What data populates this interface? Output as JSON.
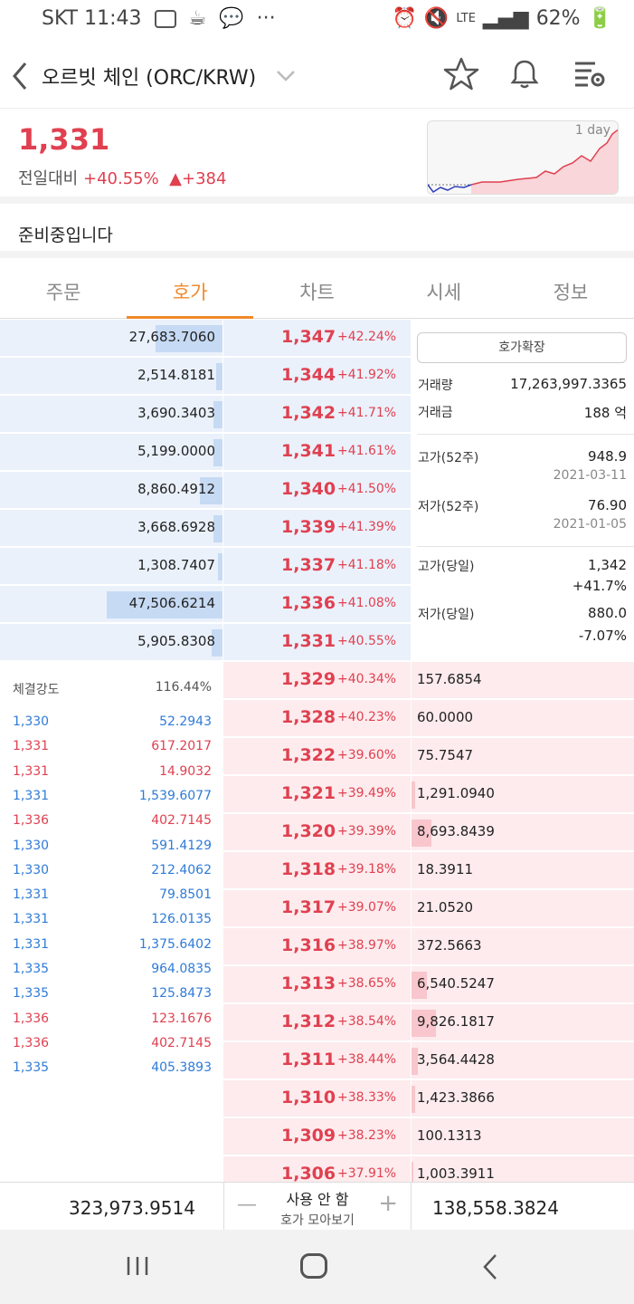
{
  "status_bar": {
    "carrier_time": "SKT 11:43",
    "dots": "···",
    "network": "LTE",
    "battery": "62%"
  },
  "header": {
    "title": "오르빗 체인 (ORC/KRW)"
  },
  "price": {
    "current": "1,331",
    "label": "전일대비",
    "percent": "+40.55%",
    "arrow": "▲",
    "diff": "+384",
    "chart_label": "1 day"
  },
  "notice": "준비중입니다",
  "tabs": [
    "주문",
    "호가",
    "차트",
    "시세",
    "정보"
  ],
  "asks": [
    {
      "qty": "27,683.7060",
      "price": "1,347",
      "pct": "+42.24%",
      "fill": 0.3
    },
    {
      "qty": "2,514.8181",
      "price": "1,344",
      "pct": "+41.92%",
      "fill": 0.03
    },
    {
      "qty": "3,690.3403",
      "price": "1,342",
      "pct": "+41.71%",
      "fill": 0.04
    },
    {
      "qty": "5,199.0000",
      "price": "1,341",
      "pct": "+41.61%",
      "fill": 0.04
    },
    {
      "qty": "8,860.4912",
      "price": "1,340",
      "pct": "+41.50%",
      "fill": 0.1
    },
    {
      "qty": "3,668.6928",
      "price": "1,339",
      "pct": "+41.39%",
      "fill": 0.04
    },
    {
      "qty": "1,308.7407",
      "price": "1,337",
      "pct": "+41.18%",
      "fill": 0.02
    },
    {
      "qty": "47,506.6214",
      "price": "1,336",
      "pct": "+41.08%",
      "fill": 0.52
    },
    {
      "qty": "5,905.8308",
      "price": "1,331",
      "pct": "+40.55%",
      "fill": 0.05
    }
  ],
  "bids": [
    {
      "qty": "157.6854",
      "price": "1,329",
      "pct": "+40.34%",
      "fill": 0.0
    },
    {
      "qty": "60.0000",
      "price": "1,328",
      "pct": "+40.23%",
      "fill": 0.0
    },
    {
      "qty": "75.7547",
      "price": "1,322",
      "pct": "+39.60%",
      "fill": 0.0
    },
    {
      "qty": "1,291.0940",
      "price": "1,321",
      "pct": "+39.49%",
      "fill": 0.015
    },
    {
      "qty": "8,693.8439",
      "price": "1,320",
      "pct": "+39.39%",
      "fill": 0.09
    },
    {
      "qty": "18.3911",
      "price": "1,318",
      "pct": "+39.18%",
      "fill": 0.0
    },
    {
      "qty": "21.0520",
      "price": "1,317",
      "pct": "+39.07%",
      "fill": 0.0
    },
    {
      "qty": "372.5663",
      "price": "1,316",
      "pct": "+38.97%",
      "fill": 0.0
    },
    {
      "qty": "6,540.5247",
      "price": "1,313",
      "pct": "+38.65%",
      "fill": 0.07
    },
    {
      "qty": "9,826.1817",
      "price": "1,312",
      "pct": "+38.54%",
      "fill": 0.11
    },
    {
      "qty": "3,564.4428",
      "price": "1,311",
      "pct": "+38.44%",
      "fill": 0.03
    },
    {
      "qty": "1,423.3866",
      "price": "1,310",
      "pct": "+38.33%",
      "fill": 0.015
    },
    {
      "qty": "100.1313",
      "price": "1,309",
      "pct": "+38.23%",
      "fill": 0.0
    },
    {
      "qty": "1,003.3911",
      "price": "1,306",
      "pct": "+37.91%",
      "fill": 0.01
    }
  ],
  "info": {
    "expand_button": "호가확장",
    "volume_label": "거래량",
    "volume": "17,263,997.3365",
    "amount_label": "거래금",
    "amount": "188 억",
    "high52_label": "고가(52주)",
    "high52": "948.9",
    "high52_date": "2021-03-11",
    "low52_label": "저가(52주)",
    "low52": "76.90",
    "low52_date": "2021-01-05",
    "high_day_label": "고가(당일)",
    "high_day": "1,342",
    "high_day_pct": "+41.7%",
    "low_day_label": "저가(당일)",
    "low_day": "880.0",
    "low_day_pct": "-7.07%"
  },
  "trades": {
    "strength_label": "체결강도",
    "strength": "116.44%",
    "rows": [
      {
        "price": "1,330",
        "qty": "52.2943",
        "side": "sell"
      },
      {
        "price": "1,331",
        "qty": "617.2017",
        "side": "buy"
      },
      {
        "price": "1,331",
        "qty": "14.9032",
        "side": "buy"
      },
      {
        "price": "1,331",
        "qty": "1,539.6077",
        "side": "sell"
      },
      {
        "price": "1,336",
        "qty": "402.7145",
        "side": "buy"
      },
      {
        "price": "1,330",
        "qty": "591.4129",
        "side": "sell"
      },
      {
        "price": "1,330",
        "qty": "212.4062",
        "side": "sell"
      },
      {
        "price": "1,331",
        "qty": "79.8501",
        "side": "sell"
      },
      {
        "price": "1,331",
        "qty": "126.0135",
        "side": "sell"
      },
      {
        "price": "1,331",
        "qty": "1,375.6402",
        "side": "sell"
      },
      {
        "price": "1,335",
        "qty": "964.0835",
        "side": "sell"
      },
      {
        "price": "1,335",
        "qty": "125.8473",
        "side": "sell"
      },
      {
        "price": "1,336",
        "qty": "123.1676",
        "side": "buy"
      },
      {
        "price": "1,336",
        "qty": "402.7145",
        "side": "buy"
      },
      {
        "price": "1,335",
        "qty": "405.3893",
        "side": "sell"
      }
    ]
  },
  "footer": {
    "total_ask": "323,973.9514",
    "total_bid": "138,558.3824",
    "mode": "사용 안 함",
    "mode_label": "호가 모아보기",
    "minus": "—",
    "plus": "+"
  },
  "colors": {
    "red": "#e04050",
    "blue": "#2f7bd8",
    "accent": "#f0892a"
  }
}
